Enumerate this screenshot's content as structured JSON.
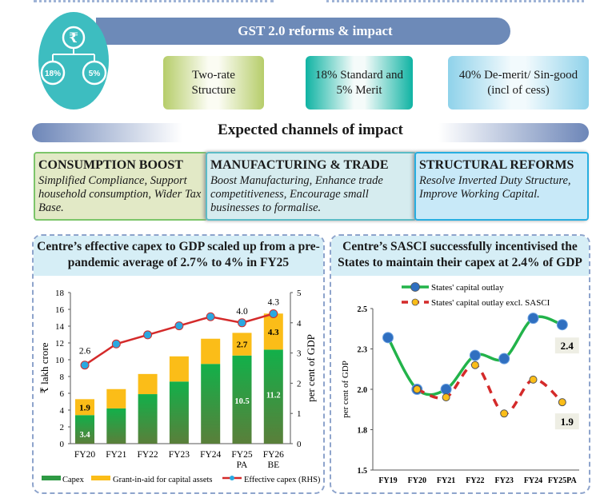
{
  "header": {
    "title": "GST 2.0 reforms & impact",
    "icon": "rupee-tree-icon",
    "rates": [
      "18%",
      "5%"
    ]
  },
  "features": [
    "Two-rate Structure",
    "18% Standard and 5% Merit",
    "40% De-merit/ Sin-good (incl of cess)"
  ],
  "channels": {
    "title": "Expected channels of impact",
    "cards": [
      {
        "title": "CONSUMPTION BOOST",
        "text": "Simplified Compliance, Support household consumption, Wider Tax Base."
      },
      {
        "title": "MANUFACTURING & TRADE",
        "text": "Boost Manufacturing, Enhance trade competitiveness, Encourage small businesses to formalise."
      },
      {
        "title": "STRUCTURAL REFORMS",
        "text": "Resolve Inverted Duty Structure, Improve Working Capital."
      }
    ]
  },
  "chart_data": [
    {
      "type": "bar",
      "title": "Centre’s effective capex to GDP scaled up from a pre-pandemic average of 2.7% to 4% in FY25",
      "categories": [
        "FY20",
        "FY21",
        "FY22",
        "FY23",
        "FY24",
        "FY25 PA",
        "FY26 BE"
      ],
      "ylabel": "₹ lakh crore",
      "ylabel_right": "per cent of GDP",
      "ylim": [
        0,
        18
      ],
      "yticks": [
        0,
        2,
        4,
        6,
        8,
        10,
        12,
        14,
        16,
        18
      ],
      "ylim_right": [
        0,
        5
      ],
      "yticks_right": [
        0,
        1,
        2,
        3,
        4,
        5
      ],
      "stacked": true,
      "series": [
        {
          "name": "Capex",
          "type": "bar",
          "color": "#1aa64a",
          "values": [
            3.4,
            4.2,
            5.9,
            7.4,
            9.5,
            10.5,
            11.2
          ],
          "labels": [
            "3.4",
            "",
            "",
            "",
            "",
            "10.5",
            "11.2"
          ]
        },
        {
          "name": "Grant-in-aid for capital assets",
          "type": "bar",
          "color": "#fbbd18",
          "values": [
            1.9,
            2.3,
            2.4,
            3.0,
            3.0,
            2.7,
            4.3
          ],
          "labels": [
            "1.9",
            "",
            "",
            "",
            "",
            "2.7",
            "4.3"
          ]
        },
        {
          "name": "Effective capex (RHS)",
          "type": "line",
          "axis": "right",
          "color": "#d42a2a",
          "marker": "#2aa8e0",
          "values": [
            2.6,
            3.3,
            3.6,
            3.9,
            4.2,
            4.0,
            4.3
          ],
          "labels": [
            "2.6",
            "",
            "",
            "",
            "",
            "4.0",
            "4.3"
          ]
        }
      ],
      "legend": "bottom"
    },
    {
      "type": "line",
      "title": "Centre’s SASCI successfully incentivised the States to maintain their capex at 2.4% of GDP",
      "categories": [
        "FY19",
        "FY20",
        "FY21",
        "FY22",
        "FY23",
        "FY24",
        "FY25PA"
      ],
      "ylabel": "per cent of GDP",
      "ylim": [
        1.5,
        2.5
      ],
      "yticks": [
        1.5,
        1.75,
        2.0,
        2.25,
        2.5
      ],
      "ytick_labels": [
        "1.5",
        "1.8",
        "2.0",
        "2.3",
        "2.5"
      ],
      "series": [
        {
          "name": "States' capital outlay",
          "color": "#22b34a",
          "marker": "#2f6fc0",
          "dash": false,
          "values": [
            2.32,
            2.0,
            2.0,
            2.21,
            2.19,
            2.44,
            2.4
          ],
          "end_label": "2.4"
        },
        {
          "name": "States' capital outlay excl. SASCI",
          "color": "#d42a2a",
          "marker": "#fbbd18",
          "dash": true,
          "values": [
            null,
            2.0,
            1.95,
            2.15,
            1.85,
            2.06,
            1.92
          ],
          "end_label": "1.9"
        }
      ],
      "legend": "top"
    }
  ]
}
